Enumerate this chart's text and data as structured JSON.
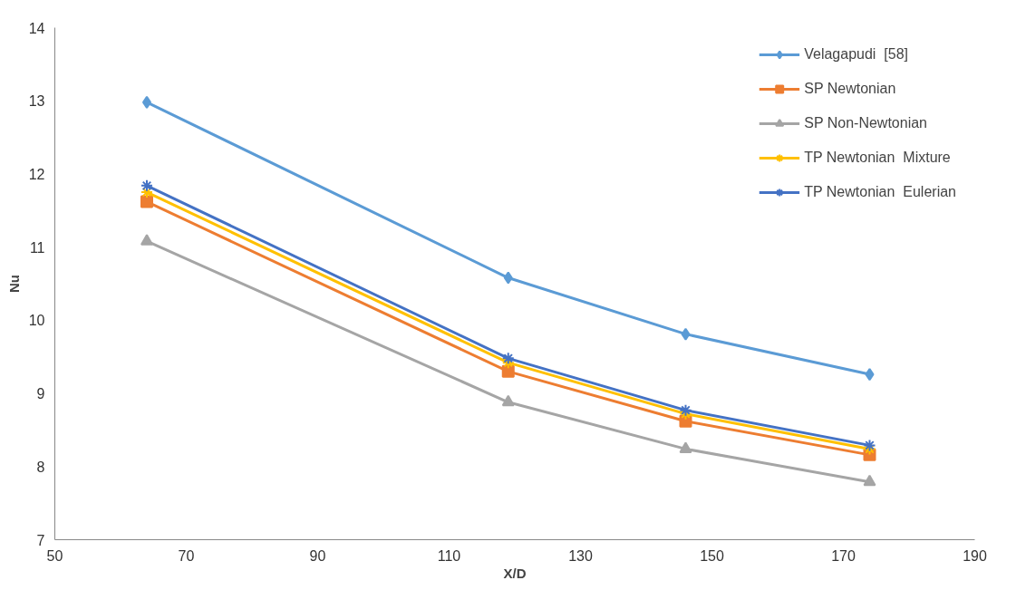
{
  "chart_data": {
    "type": "line",
    "xlabel": "X/D",
    "ylabel": "Nu",
    "x": [
      64,
      119,
      146,
      174
    ],
    "series": [
      {
        "name": "Velagapudi  [58]",
        "color": "#5b9bd5",
        "marker": "diamond",
        "values": [
          12.98,
          10.58,
          9.81,
          9.26
        ]
      },
      {
        "name": "SP Newtonian",
        "color": "#ed7d31",
        "marker": "square",
        "values": [
          11.62,
          9.3,
          8.62,
          8.16
        ]
      },
      {
        "name": "SP Non-Newtonian",
        "color": "#a5a5a5",
        "marker": "triangle",
        "values": [
          11.08,
          8.88,
          8.24,
          7.79
        ]
      },
      {
        "name": "TP Newtonian  Mixture",
        "color": "#ffc000",
        "marker": "cross",
        "values": [
          11.75,
          9.42,
          8.72,
          8.24
        ]
      },
      {
        "name": "TP Newtonian  Eulerian",
        "color": "#4472c4",
        "marker": "cross",
        "values": [
          11.84,
          9.48,
          8.77,
          8.29
        ]
      }
    ],
    "xlim": [
      50,
      190
    ],
    "xticks": [
      50,
      70,
      90,
      110,
      130,
      150,
      170,
      190
    ],
    "ylim": [
      7,
      14
    ],
    "yticks": [
      7,
      8,
      9,
      10,
      11,
      12,
      13,
      14
    ],
    "grid": false,
    "legend": "top right",
    "line_style": "solid"
  }
}
